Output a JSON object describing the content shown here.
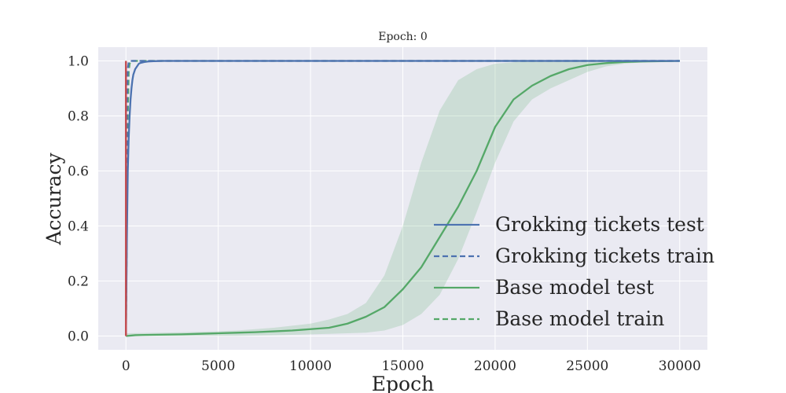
{
  "chart_data": {
    "type": "line",
    "title": "Epoch: 0",
    "xlabel": "Epoch",
    "ylabel": "Accuracy",
    "xlim": [
      -1500,
      31500
    ],
    "ylim": [
      -0.05,
      1.05
    ],
    "xticks": [
      0,
      5000,
      10000,
      15000,
      20000,
      25000,
      30000
    ],
    "yticks": [
      0.0,
      0.2,
      0.4,
      0.6,
      0.8,
      1.0
    ],
    "ytick_labels": [
      "0.0",
      "0.2",
      "0.4",
      "0.6",
      "0.8",
      "1.0"
    ],
    "grid": true,
    "legend_position": "lower-right",
    "colors": {
      "background": "#eaeaf2",
      "grid": "#ffffff",
      "blue": "#4c72b0",
      "green": "#55a868",
      "band": "#55a868",
      "marker": "#c44e52"
    },
    "series": [
      {
        "name": "Grokking tickets test",
        "style": "solid",
        "color": "#4c72b0",
        "x": [
          0,
          50,
          100,
          150,
          200,
          250,
          300,
          350,
          400,
          500,
          600,
          700,
          800,
          1000,
          1200,
          1500,
          2000,
          5000,
          10000,
          20000,
          30000
        ],
        "y": [
          0.0,
          0.35,
          0.6,
          0.72,
          0.8,
          0.86,
          0.9,
          0.93,
          0.95,
          0.97,
          0.98,
          0.99,
          0.993,
          0.996,
          0.998,
          0.999,
          1.0,
          1.0,
          1.0,
          1.0,
          1.0
        ]
      },
      {
        "name": "Grokking tickets train",
        "style": "dashed",
        "color": "#4c72b0",
        "x": [
          0,
          30,
          60,
          100,
          150,
          200,
          5000,
          10000,
          20000,
          30000
        ],
        "y": [
          0.0,
          0.55,
          0.85,
          0.97,
          0.995,
          1.0,
          1.0,
          1.0,
          1.0,
          1.0
        ]
      },
      {
        "name": "Base model test",
        "style": "solid",
        "color": "#55a868",
        "x": [
          0,
          500,
          1000,
          2000,
          3000,
          4000,
          5000,
          6000,
          7000,
          8000,
          9000,
          10000,
          11000,
          12000,
          13000,
          14000,
          15000,
          16000,
          17000,
          18000,
          19000,
          20000,
          21000,
          22000,
          23000,
          24000,
          25000,
          26000,
          27000,
          28000,
          29000,
          30000
        ],
        "y": [
          0.0,
          0.003,
          0.004,
          0.005,
          0.006,
          0.008,
          0.01,
          0.012,
          0.014,
          0.017,
          0.02,
          0.025,
          0.03,
          0.045,
          0.07,
          0.105,
          0.17,
          0.25,
          0.36,
          0.47,
          0.6,
          0.76,
          0.86,
          0.91,
          0.945,
          0.97,
          0.985,
          0.992,
          0.996,
          0.998,
          0.999,
          1.0
        ]
      },
      {
        "name": "Base model train",
        "style": "dashed",
        "color": "#55a868",
        "x": [
          0,
          50,
          100,
          150,
          200,
          300,
          5000,
          10000,
          20000,
          30000
        ],
        "y": [
          0.0,
          0.4,
          0.8,
          0.96,
          0.99,
          1.0,
          1.0,
          1.0,
          1.0,
          1.0
        ]
      }
    ],
    "band": {
      "series": "Base model test",
      "x": [
        0,
        2000,
        4000,
        6000,
        8000,
        10000,
        11000,
        12000,
        13000,
        14000,
        15000,
        16000,
        17000,
        18000,
        19000,
        20000,
        21000,
        22000,
        23000,
        24000,
        25000,
        26000,
        27000,
        28000,
        30000
      ],
      "lower": [
        0.0,
        0.0,
        0.0,
        0.0,
        0.003,
        0.006,
        0.008,
        0.01,
        0.012,
        0.02,
        0.04,
        0.08,
        0.15,
        0.28,
        0.45,
        0.63,
        0.78,
        0.86,
        0.9,
        0.93,
        0.96,
        0.98,
        0.99,
        0.995,
        1.0
      ],
      "upper": [
        0.01,
        0.012,
        0.015,
        0.02,
        0.03,
        0.045,
        0.06,
        0.08,
        0.12,
        0.22,
        0.4,
        0.63,
        0.82,
        0.93,
        0.97,
        0.99,
        0.995,
        1.0,
        1.0,
        1.0,
        1.0,
        1.0,
        1.0,
        1.0,
        1.0
      ]
    },
    "marker_epoch": 0
  }
}
